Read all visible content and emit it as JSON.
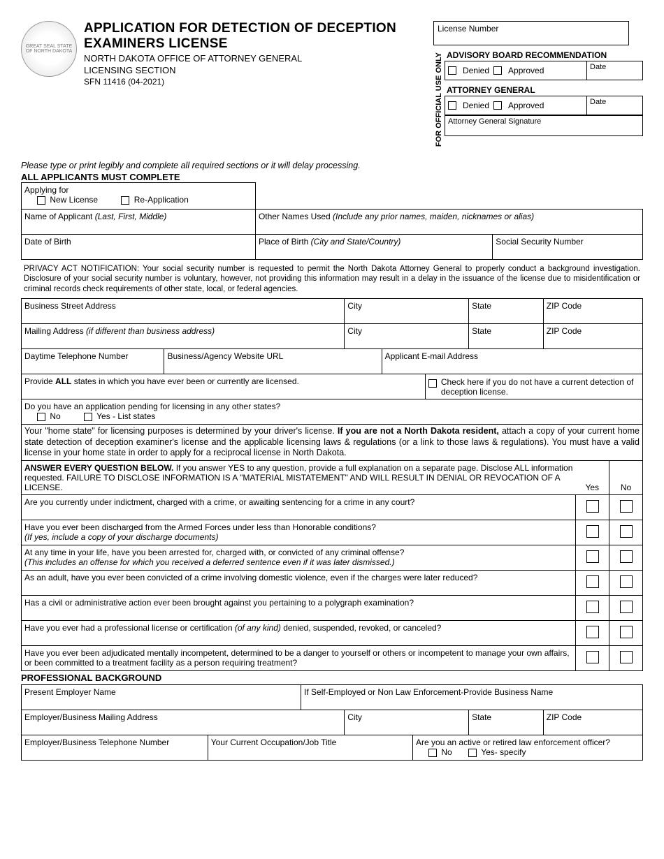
{
  "header": {
    "title": "APPLICATION FOR DETECTION OF DECEPTION EXAMINERS LICENSE",
    "agency": "NORTH DAKOTA OFFICE OF ATTORNEY GENERAL",
    "section": "LICENSING SECTION",
    "form_no": "SFN 11416 (04-2021)",
    "seal_text": "GREAT SEAL STATE OF NORTH DAKOTA"
  },
  "official": {
    "vert": "FOR OFFICIAL USE ONLY",
    "license_no": "License Number",
    "advisory": "ADVISORY BOARD RECOMMENDATION",
    "ag": "ATTORNEY GENERAL",
    "denied": "Denied",
    "approved": "Approved",
    "date": "Date",
    "sig": "Attorney General Signature"
  },
  "instr": {
    "line1": "Please type or print legibly and complete all required sections or it will delay processing.",
    "line2": "ALL APPLICANTS MUST COMPLETE"
  },
  "apply": {
    "for": "Applying for",
    "new": "New License",
    "reapp": "Re-Application"
  },
  "fields": {
    "name": "Name of Applicant ",
    "name_ital": "(Last, First, Middle)",
    "other_names": "Other Names Used ",
    "other_names_ital": "(Include any prior names, maiden, nicknames or alias)",
    "dob": "Date of Birth",
    "pob": "Place of Birth ",
    "pob_ital": "(City and State/Country)",
    "ssn": "Social Security Number",
    "privacy": "PRIVACY ACT NOTIFICATION: Your social security number is requested to permit the North Dakota Attorney General to properly conduct a background investigation. Disclosure of your social security number is voluntary, however, not providing this information may result in a delay in the issuance of the license due to misidentification or criminal records check requirements of other state, local, or federal agencies.",
    "biz_addr": "Business Street Address",
    "city": "City",
    "state": "State",
    "zip": "ZIP Code",
    "mail_addr": "Mailing Address ",
    "mail_addr_ital": "(if different than business address)",
    "phone": "Daytime Telephone Number",
    "url": "Business/Agency Website URL",
    "email": "Applicant E-mail Address",
    "all_states": "Provide ",
    "all_states_bold": "ALL",
    "all_states_2": " states in which you have ever been or currently are licensed.",
    "no_license": "Check here if you do not have a current detection of deception license.",
    "pending": "Do you have an application pending for licensing in any other states?",
    "no": "No",
    "yes_list": "Yes - List states",
    "home_state_1": "Your \"home state\" for licensing purposes is determined by your driver's license. ",
    "home_state_bold": "If you are not a North Dakota resident,",
    "home_state_2": " attach a copy of your current home state detection of deception examiner's license and the applicable licensing laws & regulations (or a link to those laws & regulations). You must have a valid license in your home state in order to apply for a reciprocal license in North Dakota.",
    "answer_bold": "ANSWER EVERY QUESTION BELOW.",
    "answer_rest": " If you answer YES to any question, provide a full explanation on a separate page. Disclose ALL information requested. FAILURE TO DISCLOSE INFORMATION IS A \"MATERIAL MISTATEMENT\" AND WILL RESULT IN DENIAL OR REVOCATION OF A LICENSE.",
    "yes": "Yes",
    "no_h": "No"
  },
  "questions": [
    {
      "text": "Are you currently under indictment, charged with a crime, or awaiting sentencing for a crime in any court?",
      "sub": ""
    },
    {
      "text": "Have you ever been discharged from the Armed Forces under less than Honorable conditions?",
      "sub": "(If yes, include a copy of your discharge documents)"
    },
    {
      "text": "At any time in your life, have you been arrested for, charged with, or convicted of any criminal offense?",
      "sub": "(This includes an offense for which you received a deferred sentence even if it was later dismissed.)"
    },
    {
      "text": "As an adult, have you ever been convicted of a crime involving domestic violence, even if the charges were later reduced?",
      "sub": ""
    },
    {
      "text": "Has a civil or administrative action ever been brought against you pertaining to a polygraph examination?",
      "sub": ""
    },
    {
      "text": "Have you ever had a professional license or certification (of any kind) denied, suspended, revoked, or canceled?",
      "sub": ""
    },
    {
      "text": "Have you ever been adjudicated mentally incompetent, determined to be a danger to yourself or others or incompetent to manage your own affairs, or been committed to a treatment facility as a person requiring treatment?",
      "sub": ""
    }
  ],
  "prof": {
    "header": "PROFESSIONAL BACKGROUND",
    "employer": "Present Employer Name",
    "self": "If Self-Employed or Non Law Enforcement-Provide Business Name",
    "emp_addr": "Employer/Business Mailing Address",
    "emp_phone": "Employer/Business Telephone Number",
    "occ": "Your Current Occupation/Job Title",
    "leo": "Are you an active or retired law enforcement officer?",
    "no": "No",
    "yes_spec": "Yes- specify"
  }
}
